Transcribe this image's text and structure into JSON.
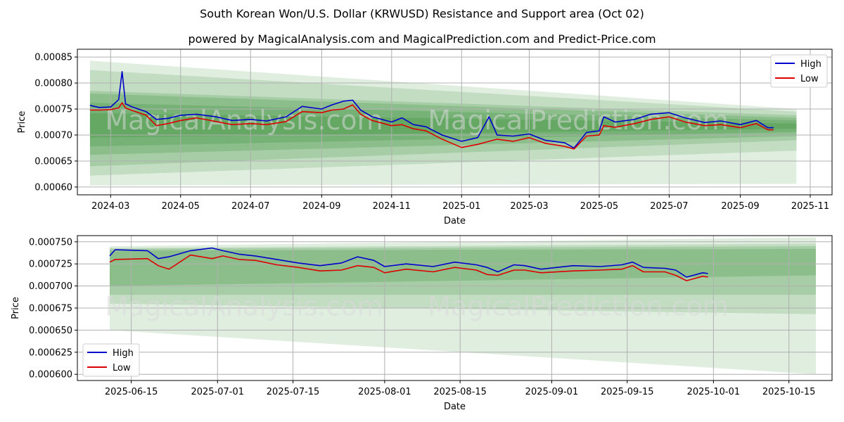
{
  "title": "South Korean Won/U.S. Dollar (KRWUSD) Resistance and Support area (Oct 02)",
  "subtitle": "powered by MagicalAnalysis.com and MagicalPrediction.com and Predict-Price.com",
  "watermark": [
    "MagicalAnalysis.com",
    "MagicalPrediction.com"
  ],
  "colors": {
    "high": "#0000cc",
    "low": "#dd0000",
    "band": "#2e8b2e",
    "grid": "#b0b0b0"
  },
  "chart_data": [
    {
      "type": "line",
      "xlabel": "Date",
      "ylabel": "Price",
      "legend": "top-right",
      "grid": true,
      "xlim": [
        "2024-02-01",
        "2025-11-20"
      ],
      "ylim": [
        0.000585,
        0.000865
      ],
      "x_ticks": [
        "2024-03",
        "2024-05",
        "2024-07",
        "2024-09",
        "2024-11",
        "2025-01",
        "2025-03",
        "2025-05",
        "2025-07",
        "2025-09",
        "2025-11"
      ],
      "x_tick_dates": [
        "2024-03-01",
        "2024-05-01",
        "2024-07-01",
        "2024-09-01",
        "2024-11-01",
        "2025-01-01",
        "2025-03-01",
        "2025-05-01",
        "2025-07-01",
        "2025-09-01",
        "2025-11-01"
      ],
      "y_ticks": [
        "0.00060",
        "0.00065",
        "0.00070",
        "0.00075",
        "0.00080",
        "0.00085"
      ],
      "y_tick_values": [
        0.0006,
        0.00065,
        0.0007,
        0.00075,
        0.0008,
        0.00085
      ],
      "bands": {
        "x_start": "2024-02-12",
        "x_end": "2025-10-20",
        "items": [
          {
            "start": [
              0.000603,
              0.000843
            ],
            "end": [
              0.000606,
              0.00075
            ]
          },
          {
            "start": [
              0.000622,
              0.000825
            ],
            "end": [
              0.00067,
              0.000745
            ]
          },
          {
            "start": [
              0.00064,
              0.000785
            ],
            "end": [
              0.00069,
              0.000738
            ]
          },
          {
            "start": [
              0.000662,
              0.00078
            ],
            "end": [
              0.000698,
              0.000733
            ]
          },
          {
            "start": [
              0.000678,
              0.000762
            ],
            "end": [
              0.000706,
              0.000728
            ]
          },
          {
            "start": [
              0.000695,
              0.000742
            ],
            "end": [
              0.000712,
              0.000722
            ]
          }
        ]
      },
      "series": [
        {
          "name": "High",
          "x": [
            "2024-02-12",
            "2024-02-20",
            "2024-03-01",
            "2024-03-08",
            "2024-03-11",
            "2024-03-14",
            "2024-03-20",
            "2024-04-01",
            "2024-04-10",
            "2024-04-20",
            "2024-05-01",
            "2024-05-15",
            "2024-06-01",
            "2024-06-15",
            "2024-07-01",
            "2024-07-15",
            "2024-08-01",
            "2024-08-15",
            "2024-09-01",
            "2024-09-10",
            "2024-09-20",
            "2024-09-28",
            "2024-10-05",
            "2024-10-15",
            "2024-11-01",
            "2024-11-10",
            "2024-11-20",
            "2024-12-01",
            "2024-12-15",
            "2025-01-01",
            "2025-01-15",
            "2025-01-25",
            "2025-02-01",
            "2025-02-15",
            "2025-03-01",
            "2025-03-15",
            "2025-04-01",
            "2025-04-09",
            "2025-04-20",
            "2025-05-01",
            "2025-05-05",
            "2025-05-15",
            "2025-06-01",
            "2025-06-15",
            "2025-07-01",
            "2025-07-15",
            "2025-08-01",
            "2025-08-15",
            "2025-09-01",
            "2025-09-15",
            "2025-09-25",
            "2025-09-30"
          ],
          "values": [
            0.000757,
            0.000753,
            0.000754,
            0.000768,
            0.000822,
            0.00076,
            0.000754,
            0.000745,
            0.00073,
            0.000732,
            0.000738,
            0.00074,
            0.000735,
            0.000728,
            0.00073,
            0.000727,
            0.000735,
            0.000755,
            0.00075,
            0.000758,
            0.000765,
            0.000767,
            0.000748,
            0.000735,
            0.000725,
            0.000733,
            0.00072,
            0.000716,
            0.0007,
            0.000688,
            0.000695,
            0.000735,
            0.0007,
            0.000698,
            0.000702,
            0.00069,
            0.000685,
            0.000675,
            0.000705,
            0.000708,
            0.000735,
            0.000725,
            0.00073,
            0.00074,
            0.000743,
            0.000733,
            0.000724,
            0.000727,
            0.00072,
            0.000728,
            0.000714,
            0.000714
          ]
        },
        {
          "name": "Low",
          "x": [
            "2024-02-12",
            "2024-02-20",
            "2024-03-01",
            "2024-03-08",
            "2024-03-11",
            "2024-03-14",
            "2024-03-20",
            "2024-04-01",
            "2024-04-10",
            "2024-04-20",
            "2024-05-01",
            "2024-05-15",
            "2024-06-01",
            "2024-06-15",
            "2024-07-01",
            "2024-07-15",
            "2024-08-01",
            "2024-08-15",
            "2024-09-01",
            "2024-09-10",
            "2024-09-20",
            "2024-09-28",
            "2024-10-05",
            "2024-10-15",
            "2024-11-01",
            "2024-11-10",
            "2024-11-20",
            "2024-12-01",
            "2024-12-15",
            "2025-01-01",
            "2025-01-15",
            "2025-01-25",
            "2025-02-01",
            "2025-02-15",
            "2025-03-01",
            "2025-03-15",
            "2025-04-01",
            "2025-04-09",
            "2025-04-20",
            "2025-05-01",
            "2025-05-05",
            "2025-05-15",
            "2025-06-01",
            "2025-06-15",
            "2025-07-01",
            "2025-07-15",
            "2025-08-01",
            "2025-08-15",
            "2025-09-01",
            "2025-09-15",
            "2025-09-25",
            "2025-09-30"
          ],
          "values": [
            0.000748,
            0.000748,
            0.000749,
            0.000752,
            0.000762,
            0.000752,
            0.000747,
            0.000738,
            0.000718,
            0.000722,
            0.000728,
            0.000733,
            0.000726,
            0.00072,
            0.000722,
            0.00072,
            0.000726,
            0.000745,
            0.000743,
            0.000748,
            0.00075,
            0.000758,
            0.00074,
            0.000728,
            0.000718,
            0.00072,
            0.000712,
            0.000708,
            0.000692,
            0.000676,
            0.000682,
            0.000688,
            0.000692,
            0.000688,
            0.000695,
            0.000684,
            0.000678,
            0.000673,
            0.000698,
            0.0007,
            0.000718,
            0.000715,
            0.000722,
            0.00073,
            0.000735,
            0.000725,
            0.000718,
            0.00072,
            0.000714,
            0.000722,
            0.00071,
            0.00071
          ]
        }
      ]
    },
    {
      "type": "line",
      "xlabel": "Date",
      "ylabel": "Price",
      "legend": "bottom-left",
      "grid": true,
      "xlim": [
        "2025-06-05",
        "2025-10-23"
      ],
      "ylim": [
        0.000593,
        0.000757
      ],
      "x_ticks": [
        "2025-06-15",
        "2025-07-01",
        "2025-07-15",
        "2025-08-01",
        "2025-08-15",
        "2025-09-01",
        "2025-09-15",
        "2025-10-01",
        "2025-10-15"
      ],
      "x_tick_dates": [
        "2025-06-15",
        "2025-07-01",
        "2025-07-15",
        "2025-08-01",
        "2025-08-15",
        "2025-09-01",
        "2025-09-15",
        "2025-10-01",
        "2025-10-15"
      ],
      "y_ticks": [
        "0.000600",
        "0.000625",
        "0.000650",
        "0.000675",
        "0.000700",
        "0.000725",
        "0.000750"
      ],
      "y_tick_values": [
        0.0006,
        0.000625,
        0.00065,
        0.000675,
        0.0007,
        0.000725,
        0.00075
      ],
      "bands": {
        "x_start": "2025-06-11",
        "x_end": "2025-10-20",
        "items": [
          {
            "start": [
              0.00065,
              0.000745
            ],
            "end": [
              0.0006,
              0.000755
            ]
          },
          {
            "start": [
              0.00068,
              0.000743
            ],
            "end": [
              0.000668,
              0.000748
            ]
          },
          {
            "start": [
              0.00069,
              0.000742
            ],
            "end": [
              0.00069,
              0.000745
            ]
          },
          {
            "start": [
              0.0007,
              0.00074
            ],
            "end": [
              0.000712,
              0.000742
            ]
          }
        ]
      },
      "series": [
        {
          "name": "High",
          "x": [
            "2025-06-11",
            "2025-06-12",
            "2025-06-18",
            "2025-06-20",
            "2025-06-22",
            "2025-06-26",
            "2025-06-30",
            "2025-07-02",
            "2025-07-05",
            "2025-07-08",
            "2025-07-12",
            "2025-07-16",
            "2025-07-20",
            "2025-07-24",
            "2025-07-27",
            "2025-07-30",
            "2025-08-01",
            "2025-08-05",
            "2025-08-10",
            "2025-08-14",
            "2025-08-18",
            "2025-08-20",
            "2025-08-22",
            "2025-08-25",
            "2025-08-27",
            "2025-08-30",
            "2025-09-05",
            "2025-09-10",
            "2025-09-14",
            "2025-09-16",
            "2025-09-18",
            "2025-09-22",
            "2025-09-24",
            "2025-09-26",
            "2025-09-29",
            "2025-09-30"
          ],
          "values": [
            0.000734,
            0.000741,
            0.00074,
            0.000731,
            0.000733,
            0.00074,
            0.000743,
            0.00074,
            0.000736,
            0.000734,
            0.00073,
            0.000726,
            0.000723,
            0.000726,
            0.000733,
            0.000729,
            0.000722,
            0.000725,
            0.000722,
            0.000727,
            0.000724,
            0.000721,
            0.000716,
            0.000724,
            0.000723,
            0.000719,
            0.000723,
            0.000722,
            0.000724,
            0.000727,
            0.000721,
            0.00072,
            0.000718,
            0.00071,
            0.000715,
            0.000714
          ]
        },
        {
          "name": "Low",
          "x": [
            "2025-06-11",
            "2025-06-12",
            "2025-06-18",
            "2025-06-20",
            "2025-06-22",
            "2025-06-26",
            "2025-06-30",
            "2025-07-02",
            "2025-07-05",
            "2025-07-08",
            "2025-07-12",
            "2025-07-16",
            "2025-07-20",
            "2025-07-24",
            "2025-07-27",
            "2025-07-30",
            "2025-08-01",
            "2025-08-05",
            "2025-08-10",
            "2025-08-14",
            "2025-08-18",
            "2025-08-20",
            "2025-08-22",
            "2025-08-25",
            "2025-08-27",
            "2025-08-30",
            "2025-09-05",
            "2025-09-10",
            "2025-09-14",
            "2025-09-16",
            "2025-09-18",
            "2025-09-22",
            "2025-09-24",
            "2025-09-26",
            "2025-09-29",
            "2025-09-30"
          ],
          "values": [
            0.000727,
            0.00073,
            0.000731,
            0.000723,
            0.000719,
            0.000735,
            0.000731,
            0.000734,
            0.00073,
            0.000729,
            0.000724,
            0.000721,
            0.000717,
            0.000718,
            0.000723,
            0.000721,
            0.000715,
            0.000719,
            0.000716,
            0.000721,
            0.000718,
            0.000713,
            0.000712,
            0.000718,
            0.000718,
            0.000715,
            0.000717,
            0.000718,
            0.000719,
            0.000723,
            0.000716,
            0.000716,
            0.000712,
            0.000706,
            0.000711,
            0.00071
          ]
        }
      ]
    }
  ]
}
